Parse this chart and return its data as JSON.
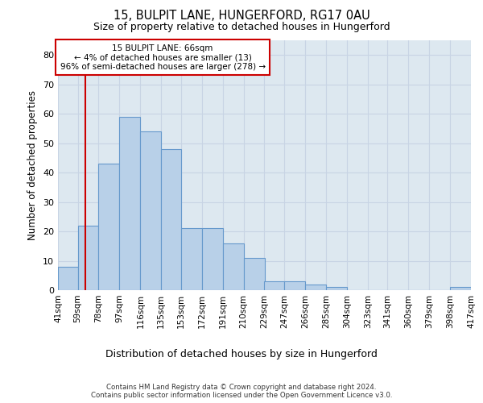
{
  "title1": "15, BULPIT LANE, HUNGERFORD, RG17 0AU",
  "title2": "Size of property relative to detached houses in Hungerford",
  "xlabel": "Distribution of detached houses by size in Hungerford",
  "ylabel": "Number of detached properties",
  "annotation_line1": "15 BULPIT LANE: 66sqm",
  "annotation_line2": "← 4% of detached houses are smaller (13)",
  "annotation_line3": "96% of semi-detached houses are larger (278) →",
  "property_size": 66,
  "bin_edges": [
    41,
    59,
    78,
    97,
    116,
    135,
    153,
    172,
    191,
    210,
    229,
    247,
    266,
    285,
    304,
    323,
    341,
    360,
    379,
    398,
    417
  ],
  "bin_counts": [
    8,
    22,
    43,
    59,
    54,
    48,
    21,
    21,
    16,
    11,
    3,
    3,
    2,
    1,
    0,
    0,
    0,
    0,
    0,
    1
  ],
  "bar_color": "#b8d0e8",
  "bar_edge_color": "#6699cc",
  "vline_color": "#cc0000",
  "vline_x": 66,
  "annotation_box_color": "#cc0000",
  "grid_color": "#c8d4e4",
  "bg_color": "#dde8f0",
  "ylim": [
    0,
    85
  ],
  "yticks": [
    0,
    10,
    20,
    30,
    40,
    50,
    60,
    70,
    80
  ],
  "footer1": "Contains HM Land Registry data © Crown copyright and database right 2024.",
  "footer2": "Contains public sector information licensed under the Open Government Licence v3.0."
}
